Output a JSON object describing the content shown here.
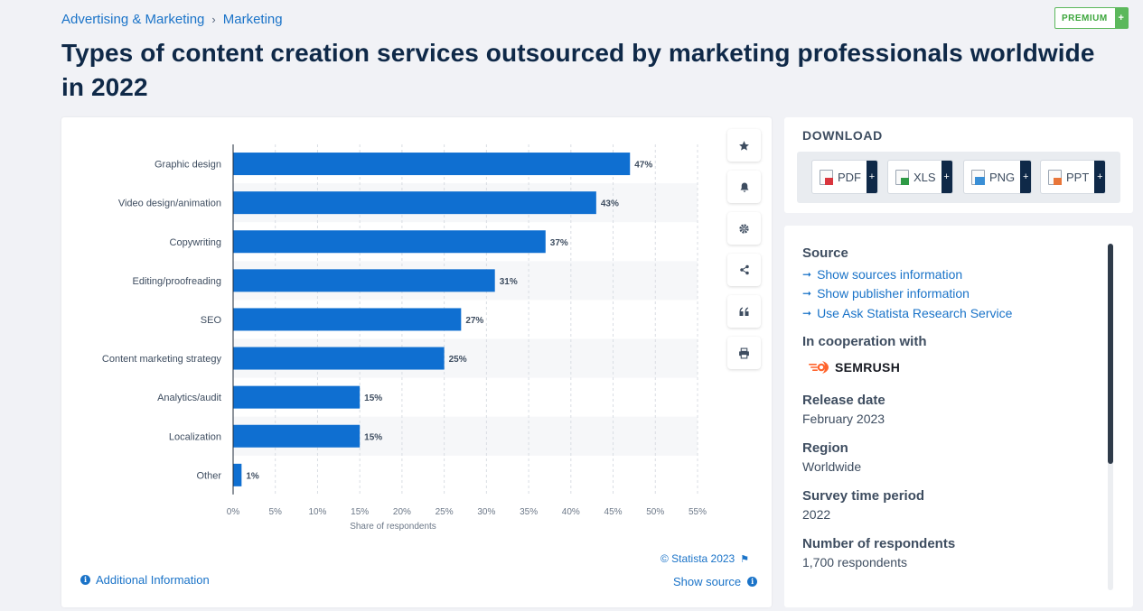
{
  "breadcrumb": {
    "items": [
      "Advertising & Marketing",
      "Marketing"
    ],
    "separator": "›"
  },
  "premium": {
    "label": "PREMIUM",
    "plus": "+"
  },
  "page_title": "Types of content creation services outsourced by marketing professionals worldwide in 2022",
  "colors": {
    "bar": "#0f6fd1",
    "link": "#1a73c8",
    "title": "#0f2948",
    "premium": "#5cb85c"
  },
  "chart_data": {
    "type": "bar",
    "orientation": "horizontal",
    "categories": [
      "Graphic design",
      "Video design/animation",
      "Copywriting",
      "Editing/proofreading",
      "SEO",
      "Content marketing strategy",
      "Analytics/audit",
      "Localization",
      "Other"
    ],
    "values": [
      47,
      43,
      37,
      31,
      27,
      25,
      15,
      15,
      1
    ],
    "data_labels": [
      "47%",
      "43%",
      "37%",
      "31%",
      "27%",
      "25%",
      "15%",
      "15%",
      "1%"
    ],
    "xlabel": "Share of respondents",
    "xlim": [
      0,
      55
    ],
    "x_ticks": [
      "0%",
      "5%",
      "10%",
      "15%",
      "20%",
      "25%",
      "30%",
      "35%",
      "40%",
      "45%",
      "50%",
      "55%"
    ],
    "grid": true
  },
  "toolbar": {
    "icons": [
      "star-icon",
      "bell-icon",
      "gear-icon",
      "share-icon",
      "quote-icon",
      "print-icon"
    ]
  },
  "credit": "© Statista 2023",
  "show_source": "Show source",
  "additional_info": "Additional Information",
  "download": {
    "title": "DOWNLOAD",
    "buttons": [
      {
        "label": "PDF",
        "plus": "+",
        "icon": "pdf-file-icon"
      },
      {
        "label": "XLS",
        "plus": "+",
        "icon": "xls-file-icon"
      },
      {
        "label": "PNG",
        "plus": "+",
        "icon": "png-file-icon"
      },
      {
        "label": "PPT",
        "plus": "+",
        "icon": "ppt-file-icon"
      }
    ]
  },
  "meta": {
    "source_heading": "Source",
    "source_links": [
      "Show sources information",
      "Show publisher information",
      "Use Ask Statista Research Service"
    ],
    "cooperation_heading": "In cooperation with",
    "cooperation_logo": "SEMRUSH",
    "release_heading": "Release date",
    "release_value": "February 2023",
    "region_heading": "Region",
    "region_value": "Worldwide",
    "survey_heading": "Survey time period",
    "survey_value": "2022",
    "respondents_heading": "Number of respondents",
    "respondents_value": "1,700 respondents"
  }
}
